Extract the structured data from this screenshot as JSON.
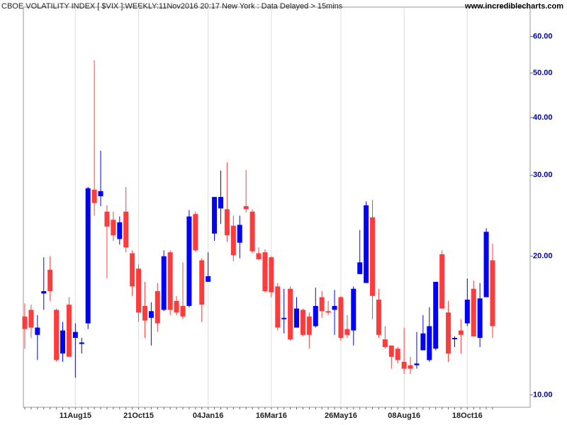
{
  "chart_data": {
    "type": "candlestick",
    "title": "CBOE VOLATILITY INDEX [ $VIX ]:WEEKLY:11Nov2016 20:17 New York : Data Delayed > 15mins",
    "source": "www.incrediblecharts.com",
    "categories": [
      null,
      null,
      null,
      null,
      null,
      null,
      null,
      null,
      "11Aug15",
      null,
      null,
      null,
      null,
      null,
      null,
      null,
      null,
      null,
      "21Oct15",
      null,
      null,
      null,
      null,
      null,
      null,
      null,
      null,
      null,
      null,
      "04Jan16",
      null,
      null,
      null,
      null,
      null,
      null,
      null,
      null,
      null,
      "16Mar16",
      null,
      null,
      null,
      null,
      null,
      null,
      null,
      null,
      null,
      null,
      "26May16",
      null,
      null,
      null,
      null,
      null,
      null,
      null,
      null,
      null,
      "08Aug16",
      null,
      null,
      null,
      null,
      null,
      null,
      null,
      null,
      null,
      "18Oct16",
      null,
      null,
      null,
      null
    ],
    "open": [
      14.8,
      15.3,
      13.5,
      16.6,
      18.7,
      15.3,
      12.3,
      15.7,
      13.3,
      12.9,
      14.3,
      27.9,
      27.0,
      25.0,
      24.0,
      21.8,
      25.0,
      20.3,
      18.8,
      15.6,
      14.7,
      16.8,
      15.3,
      20.4,
      16.0,
      15.6,
      15.6,
      24.7,
      19.6,
      17.6,
      22.4,
      25.4,
      25.3,
      23.3,
      21.4,
      25.7,
      25.0,
      20.3,
      20.4,
      19.9,
      17.2,
      14.6,
      17.0,
      14.0,
      15.3,
      14.8,
      14.1,
      16.3,
      15.2,
      15.3,
      16.3,
      13.9,
      13.8,
      18.3,
      17.5,
      24.3,
      16.1,
      13.2,
      12.8,
      12.6,
      11.8,
      11.6,
      11.6,
      12.5,
      11.9,
      12.6,
      20.2,
      15.1,
      13.3,
      13.8,
      14.3,
      17.0,
      13.3,
      16.3,
      19.6
    ],
    "high": [
      15.8,
      15.7,
      14.9,
      19.9,
      20.0,
      15.4,
      14.4,
      16.3,
      14.3,
      13.3,
      28.3,
      53.3,
      33.9,
      25.8,
      25.0,
      24.4,
      28.3,
      20.6,
      19.2,
      17.6,
      15.9,
      17.5,
      20.6,
      20.6,
      16.4,
      19.4,
      25.2,
      25.0,
      19.8,
      20.4,
      26.9,
      30.7,
      32.0,
      24.5,
      24.5,
      30.8,
      25.3,
      20.9,
      20.7,
      20.0,
      17.5,
      17.0,
      17.2,
      16.3,
      15.4,
      15.1,
      17.1,
      16.8,
      16.0,
      16.9,
      16.4,
      14.9,
      17.2,
      22.8,
      26.3,
      26.5,
      17.0,
      14.1,
      12.8,
      12.7,
      14.0,
      12.1,
      13.7,
      14.9,
      15.5,
      17.6,
      20.6,
      16.0,
      13.4,
      14.6,
      17.9,
      17.7,
      17.5,
      23.0,
      21.3
    ],
    "low": [
      12.6,
      13.3,
      11.9,
      15.3,
      16.0,
      11.8,
      11.8,
      12.1,
      10.9,
      12.3,
      13.9,
      24.5,
      25.7,
      17.9,
      21.6,
      21.2,
      20.4,
      16.4,
      14.4,
      13.3,
      12.8,
      13.7,
      15.2,
      14.9,
      14.9,
      14.6,
      15.5,
      20.4,
      14.4,
      17.6,
      21.6,
      23.5,
      21.5,
      19.5,
      19.8,
      24.9,
      20.3,
      19.6,
      16.7,
      16.3,
      13.8,
      13.6,
      13.1,
      14.0,
      13.4,
      12.6,
      14.0,
      14.7,
      14.9,
      13.5,
      13.1,
      13.3,
      12.8,
      18.3,
      17.5,
      14.6,
      13.3,
      12.6,
      11.4,
      11.7,
      11.1,
      11.1,
      11.4,
      12.5,
      11.8,
      12.5,
      15.4,
      11.8,
      12.7,
      12.3,
      14.1,
      13.4,
      12.7,
      16.3,
      13.3
    ],
    "close": [
      13.9,
      14.0,
      14.0,
      16.8,
      16.8,
      11.9,
      13.8,
      12.1,
      13.7,
      13.0,
      28.1,
      26.1,
      27.7,
      23.2,
      22.2,
      23.7,
      20.9,
      17.2,
      15.1,
      14.5,
      15.2,
      14.3,
      20.0,
      15.3,
      15.1,
      14.8,
      24.4,
      20.6,
      15.7,
      18.1,
      26.9,
      26.9,
      22.2,
      20.1,
      23.4,
      25.3,
      20.5,
      19.7,
      16.8,
      16.7,
      14.0,
      14.7,
      13.2,
      15.4,
      13.5,
      13.5,
      15.6,
      15.2,
      15.1,
      15.6,
      13.3,
      13.5,
      17.0,
      19.4,
      25.8,
      16.4,
      13.5,
      12.7,
      12.1,
      11.9,
      11.4,
      11.4,
      11.7,
      13.6,
      14.1,
      17.6,
      15.4,
      12.3,
      13.3,
      13.5,
      16.1,
      13.4,
      16.2,
      22.6,
      14.1
    ],
    "up_color": "#0000ff",
    "down_color": "#ff3b3b",
    "log_scale": true,
    "ylim": [
      9.4,
      69.5
    ],
    "yticks": [
      {
        "value": 10,
        "label": "10.00"
      },
      {
        "value": 20,
        "label": "20.00"
      },
      {
        "value": 30,
        "label": "30.00"
      },
      {
        "value": 40,
        "label": "40.00"
      },
      {
        "value": 50,
        "label": "50.00"
      },
      {
        "value": 60,
        "label": "60.00"
      }
    ],
    "grid": true
  }
}
